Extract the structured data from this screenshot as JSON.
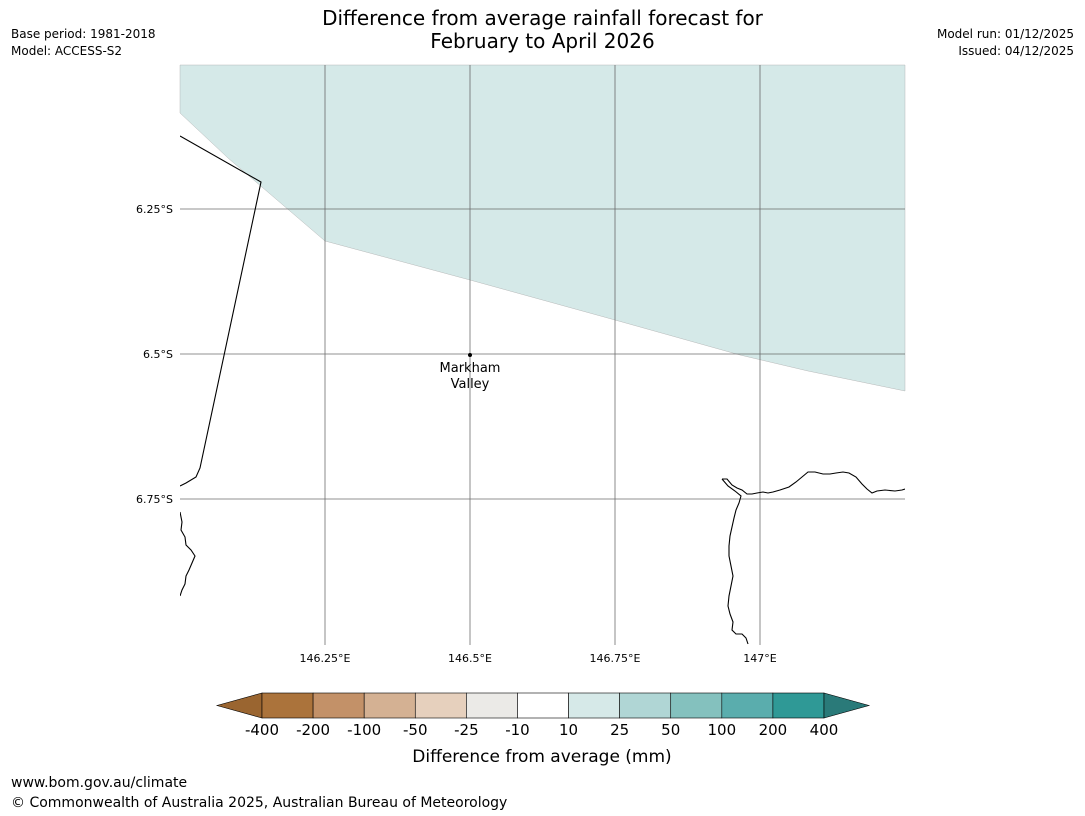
{
  "header": {
    "title_line1": "Difference from average rainfall forecast for",
    "title_line2": "February to April 2026",
    "base_period": "Base period: 1981-2018",
    "model": "Model: ACCESS-S2",
    "model_run": "Model run: 01/12/2025",
    "issued": "Issued: 04/12/2025"
  },
  "map": {
    "lat_labels": [
      "6.25°S",
      "6.5°S",
      "6.75°S"
    ],
    "lon_labels": [
      "146.25°E",
      "146.5°E",
      "146.75°E",
      "147°E"
    ],
    "location": {
      "name_line1": "Markham",
      "name_line2": "Valley"
    },
    "shaded_category": "10 to 25",
    "shaded_color": "#d5e9e8"
  },
  "colorbar": {
    "label": "Difference from average (mm)",
    "ticks": [
      "-400",
      "-200",
      "-100",
      "-50",
      "-25",
      "-10",
      "10",
      "25",
      "50",
      "100",
      "200",
      "400"
    ],
    "colors": {
      "below_min": "#9a6530",
      "bins": [
        "#ab733b",
        "#c39168",
        "#d4b193",
        "#e6d0bd",
        "#ebeae7",
        "#ffffff",
        "#d6e9e8",
        "#b0d6d5",
        "#84c1be",
        "#5aadad",
        "#2f9996"
      ],
      "above_max": "#2a7a79"
    }
  },
  "footer": {
    "url": "www.bom.gov.au/climate",
    "copyright": "© Commonwealth of Australia 2025, Australian Bureau of Meteorology"
  }
}
